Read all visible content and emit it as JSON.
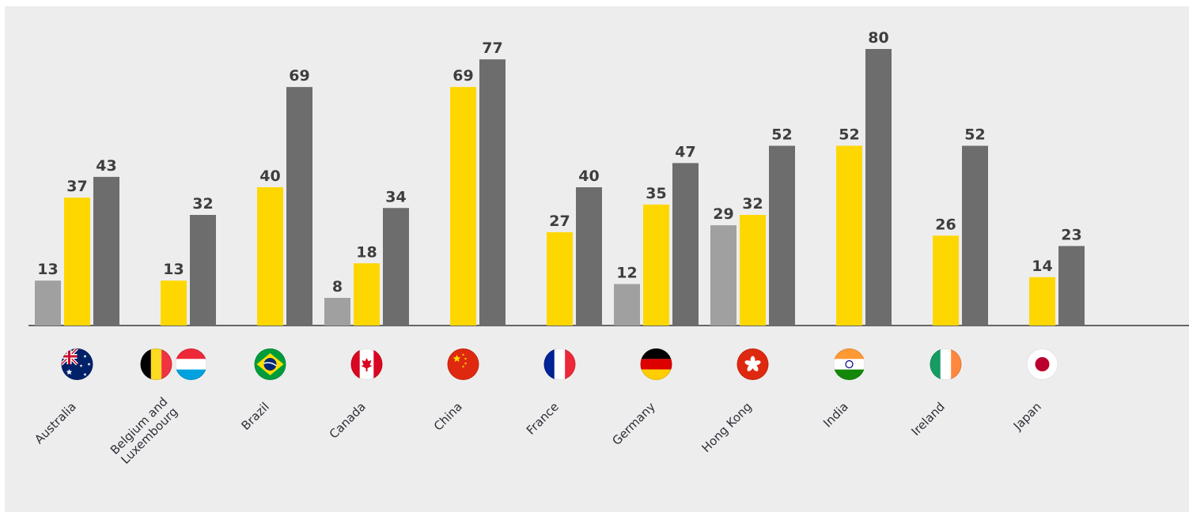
{
  "chart_data": {
    "type": "bar",
    "title": "",
    "xlabel": "",
    "ylabel": "",
    "ylim": [
      0,
      90
    ],
    "grid": false,
    "legend": "none",
    "categories": [
      "Australia",
      "Belgium and Luxembourg",
      "Brazil",
      "Canada",
      "China",
      "France",
      "Germany",
      "Hong Kong",
      "India",
      "Ireland",
      "Japan"
    ],
    "category_label_lines": [
      [
        "Australia"
      ],
      [
        "Belgium and",
        "Luxembourg"
      ],
      [
        "Brazil"
      ],
      [
        "Canada"
      ],
      [
        "China"
      ],
      [
        "France"
      ],
      [
        "Germany"
      ],
      [
        "Hong Kong"
      ],
      [
        "India"
      ],
      [
        "Ireland"
      ],
      [
        "Japan"
      ]
    ],
    "category_flags": [
      [
        "australia-flag"
      ],
      [
        "belgium-flag",
        "luxembourg-flag"
      ],
      [
        "brazil-flag"
      ],
      [
        "canada-flag"
      ],
      [
        "china-flag"
      ],
      [
        "france-flag"
      ],
      [
        "germany-flag"
      ],
      [
        "hong-kong-flag"
      ],
      [
        "india-flag"
      ],
      [
        "ireland-flag"
      ],
      [
        "japan-flag"
      ]
    ],
    "series": [
      {
        "color": "#a0a0a0",
        "values": [
          13,
          null,
          null,
          8,
          null,
          null,
          12,
          29,
          null,
          null,
          null
        ]
      },
      {
        "color": "#ffd700",
        "values": [
          37,
          13,
          40,
          18,
          69,
          27,
          35,
          32,
          52,
          26,
          14
        ]
      },
      {
        "color": "#6d6d6d",
        "values": [
          43,
          32,
          69,
          34,
          77,
          40,
          47,
          52,
          80,
          52,
          23
        ]
      }
    ]
  }
}
